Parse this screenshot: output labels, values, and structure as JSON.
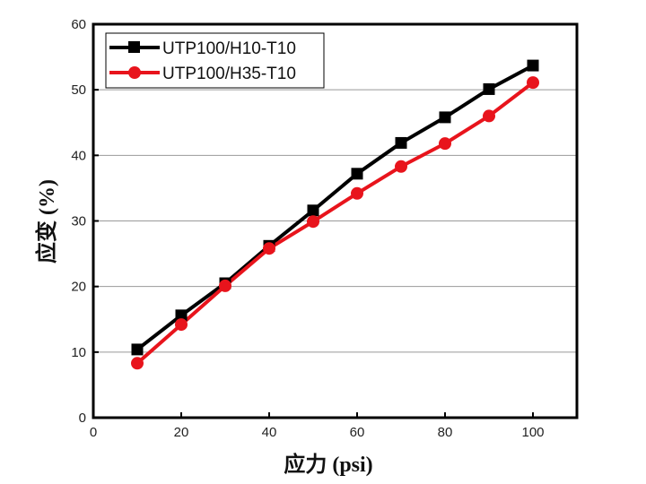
{
  "chart_data": {
    "type": "line",
    "title": "",
    "xlabel": "应力 (psi)",
    "ylabel": "应变 (%)",
    "xlim": [
      0,
      110
    ],
    "ylim": [
      0,
      60
    ],
    "xticks": [
      0,
      20,
      40,
      60,
      80,
      100
    ],
    "yticks": [
      0,
      10,
      20,
      30,
      40,
      50,
      60
    ],
    "grid": "horizontal",
    "legend_position": "top-left",
    "x": [
      10,
      20,
      30,
      40,
      50,
      60,
      70,
      80,
      90,
      100
    ],
    "series": [
      {
        "name": "UTP100/H10-T10",
        "color": "#000000",
        "marker": "square",
        "values": [
          10.4,
          15.6,
          20.5,
          26.2,
          31.6,
          37.2,
          41.9,
          45.8,
          50.1,
          53.7
        ]
      },
      {
        "name": "UTP100/H35-T10",
        "color": "#e8141c",
        "marker": "circle",
        "values": [
          8.3,
          14.2,
          20.1,
          25.8,
          29.9,
          34.2,
          38.3,
          41.8,
          46.0,
          51.1
        ]
      }
    ]
  }
}
